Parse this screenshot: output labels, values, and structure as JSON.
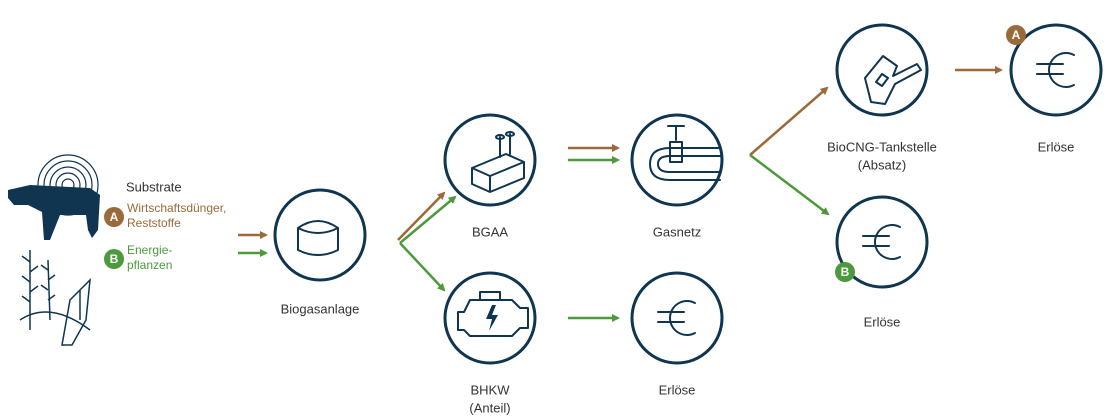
{
  "substrate": {
    "title": "Substrate",
    "items": [
      {
        "badge": "A",
        "lines": [
          "Wirtschaftsdünger,",
          "Reststoffe"
        ]
      },
      {
        "badge": "B",
        "lines": [
          "Energie-",
          "pflanzen"
        ]
      }
    ]
  },
  "nodes": [
    {
      "lines": [
        "Biogasanlage"
      ]
    },
    {
      "lines": [
        "BGAA"
      ]
    },
    {
      "lines": [
        "Gasnetz"
      ]
    },
    {
      "lines": [
        "BHKW",
        "(Anteil)"
      ]
    },
    {
      "lines": [
        "Erlöse"
      ]
    },
    {
      "lines": [
        "BioCNG-Tankstelle",
        "(Absatz)"
      ]
    },
    {
      "lines": [
        "Erlöse"
      ],
      "badge": "A"
    },
    {
      "lines": [
        "Erlöse"
      ],
      "badge": "B"
    }
  ]
}
